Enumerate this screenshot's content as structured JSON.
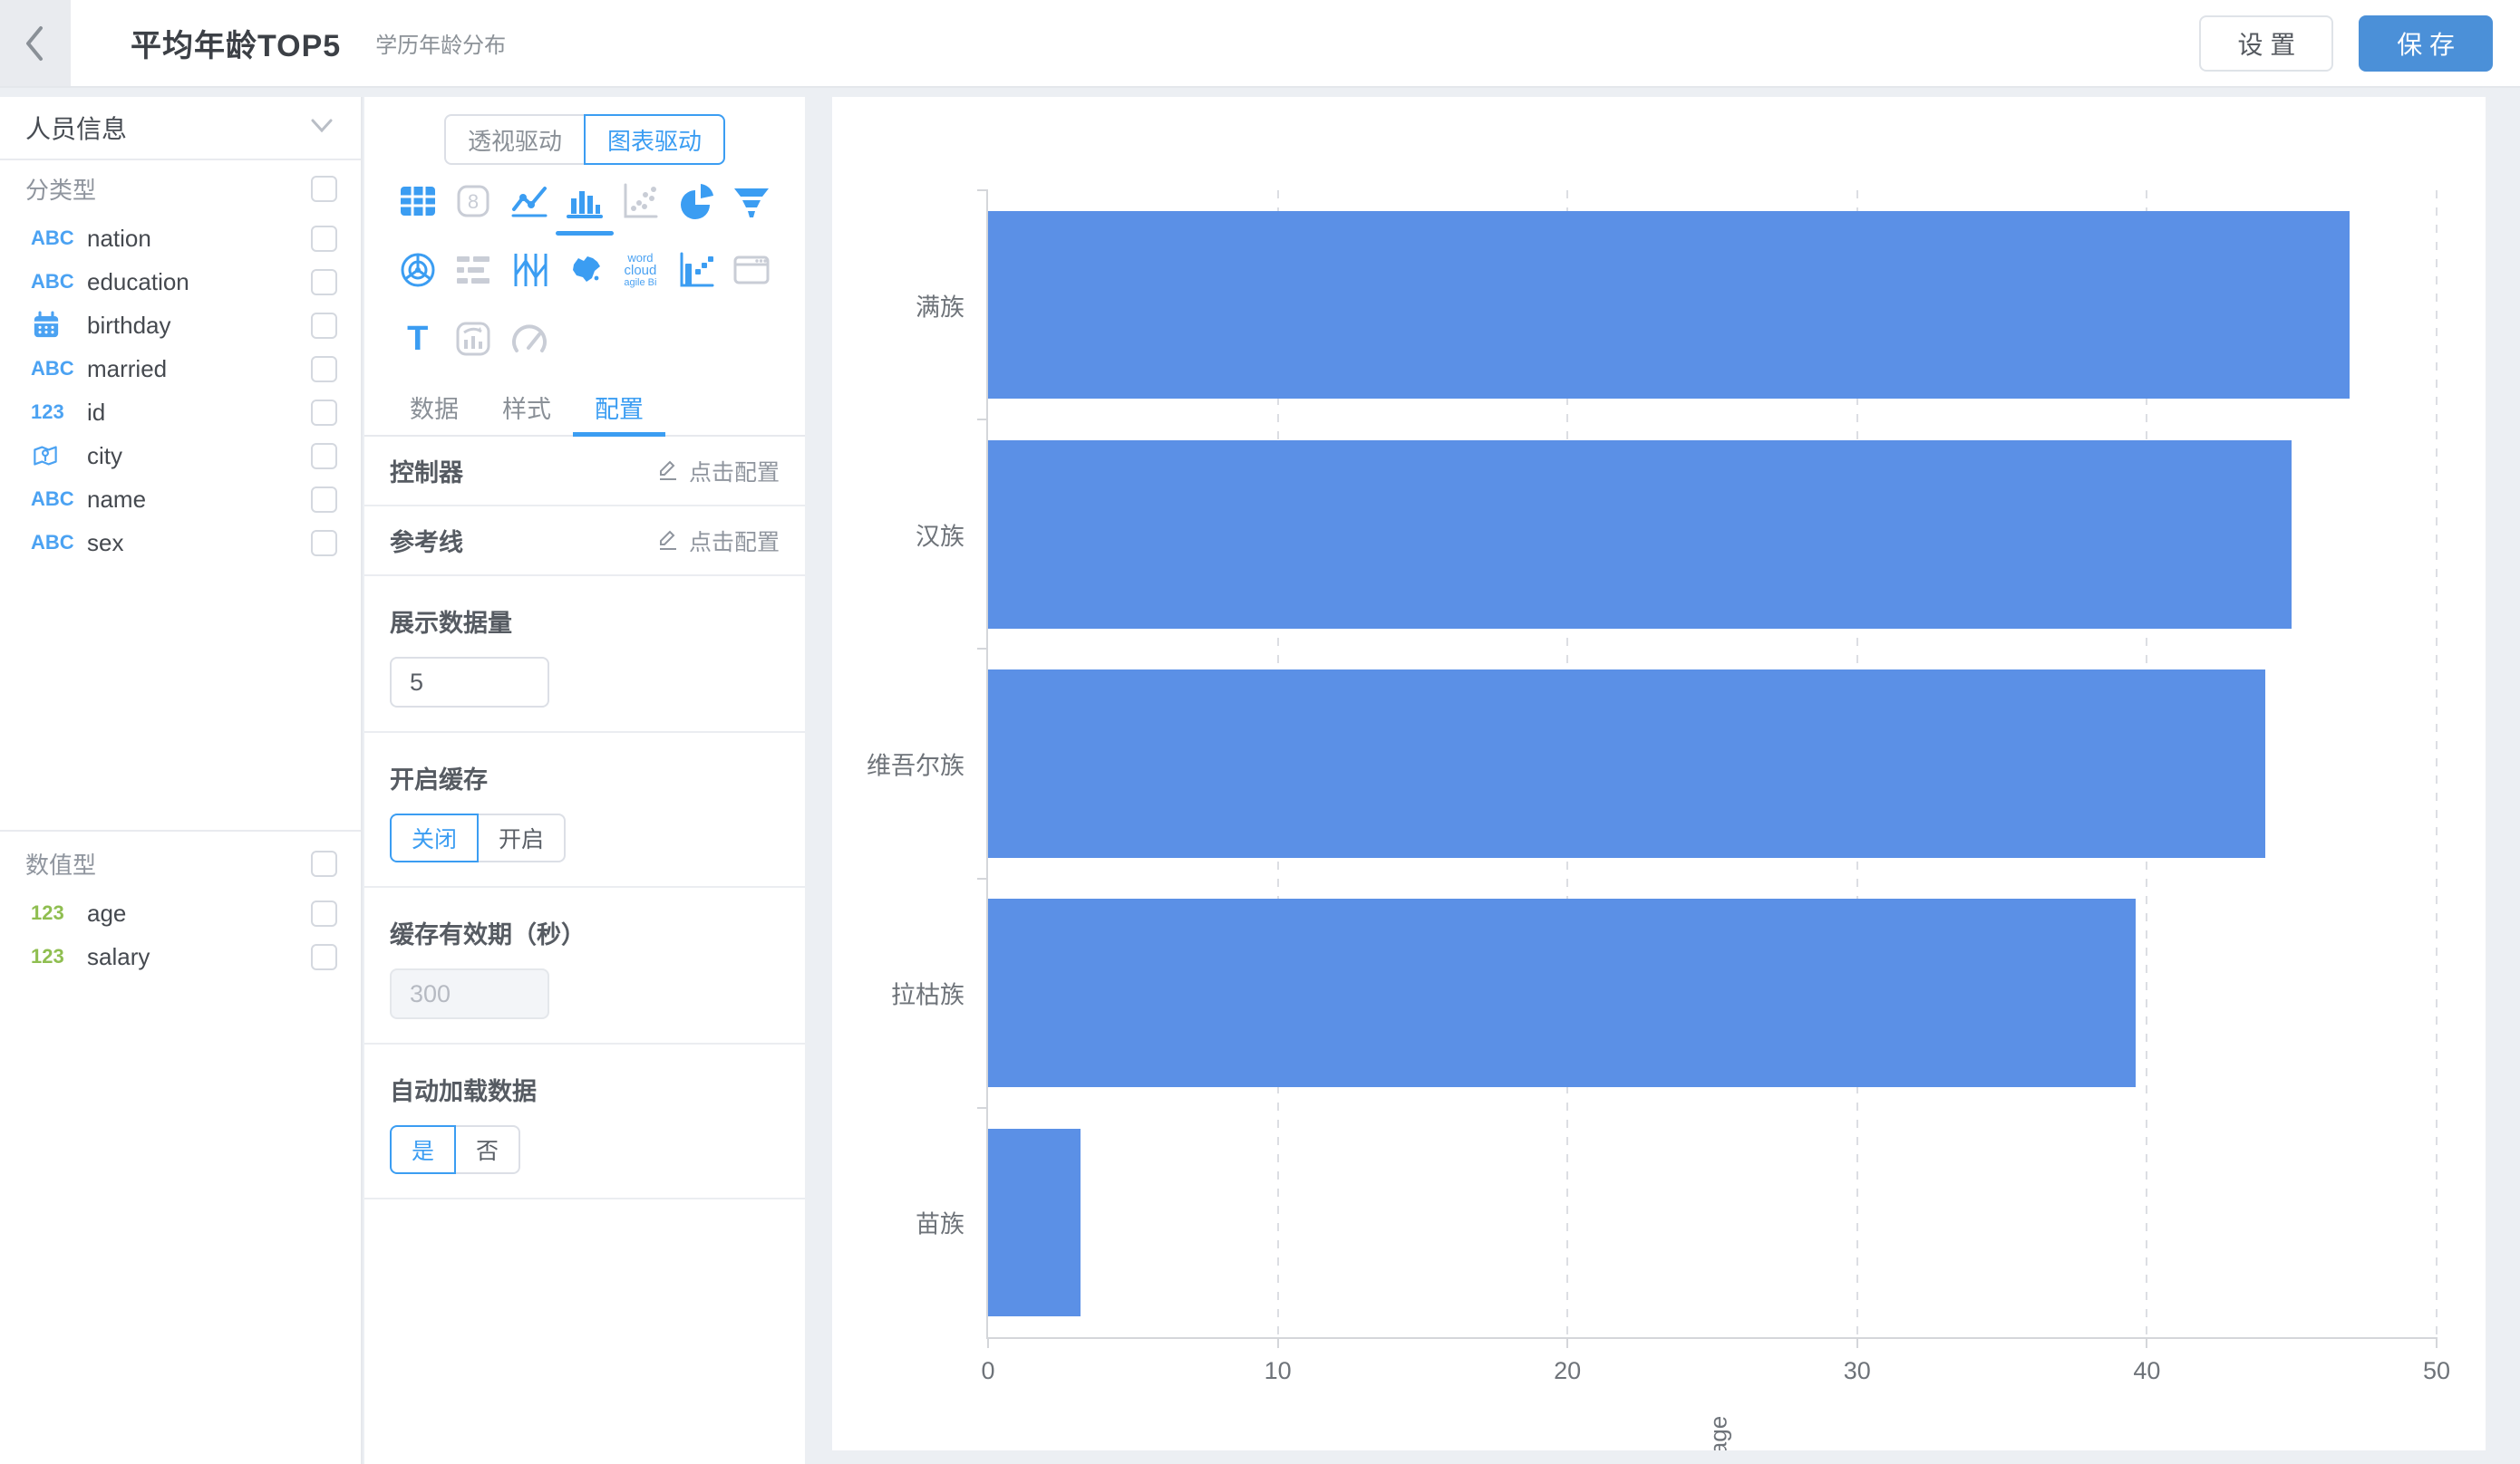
{
  "header": {
    "title": "平均年龄TOP5",
    "subtitle": "学历年龄分布",
    "settings_label": "设 置",
    "save_label": "保 存"
  },
  "sidebar": {
    "dataset_name": "人员信息",
    "icon_text": {
      "text": "ABC",
      "number": "123"
    },
    "categorical": {
      "section_label": "分类型",
      "items": [
        {
          "label": "nation",
          "icon": "text"
        },
        {
          "label": "education",
          "icon": "text"
        },
        {
          "label": "birthday",
          "icon": "calendar"
        },
        {
          "label": "married",
          "icon": "text"
        },
        {
          "label": "id",
          "icon": "number"
        },
        {
          "label": "city",
          "icon": "location"
        },
        {
          "label": "name",
          "icon": "text"
        },
        {
          "label": "sex",
          "icon": "text"
        }
      ]
    },
    "numeric": {
      "section_label": "数值型",
      "items": [
        {
          "label": "age",
          "icon": "number"
        },
        {
          "label": "salary",
          "icon": "number"
        }
      ]
    }
  },
  "panel": {
    "mode_tabs": {
      "pivot": "透视驱动",
      "chart": "图表驱动",
      "active": "图表驱动"
    },
    "tabs": {
      "data": "数据",
      "style": "样式",
      "config": "配置",
      "active": "配置"
    },
    "icons": {
      "number_card": "8",
      "text_chart": "T",
      "word_cloud": [
        "word",
        "cloud",
        "agile Bi"
      ]
    },
    "controller": {
      "label": "控制器",
      "action": "点击配置"
    },
    "reference_line": {
      "label": "参考线",
      "action": "点击配置"
    },
    "display_count": {
      "label": "展示数据量",
      "value": "5"
    },
    "cache": {
      "label": "开启缓存",
      "off": "关闭",
      "on": "开启",
      "selected": "关闭"
    },
    "cache_expire": {
      "label": "缓存有效期（秒）",
      "value": "300",
      "disabled": true
    },
    "auto_load": {
      "label": "自动加载数据",
      "yes": "是",
      "no": "否",
      "selected": "是"
    }
  },
  "chart_data": {
    "type": "bar",
    "orientation": "horizontal",
    "title": "",
    "categories": [
      "满族",
      "汉族",
      "维吾尔族",
      "拉枯族",
      "苗族"
    ],
    "values": [
      47,
      45,
      44.1,
      39.6,
      3.2
    ],
    "xlabel": "age",
    "ylabel": "",
    "xlim": [
      0,
      50
    ],
    "xticks": [
      0,
      10,
      20,
      30,
      40,
      50
    ],
    "grid": "dashed-vertical",
    "legend": "none",
    "bar_color": "#5b90e6"
  },
  "colors": {
    "accent": "#3b9df2",
    "save_button": "#4b90d8",
    "bar": "#5b90e6",
    "icon_blue": "#4ba2f2",
    "icon_green": "#8fbe50",
    "icon_disabled": "#c9cdd6",
    "page_bg": "#eceff3"
  }
}
